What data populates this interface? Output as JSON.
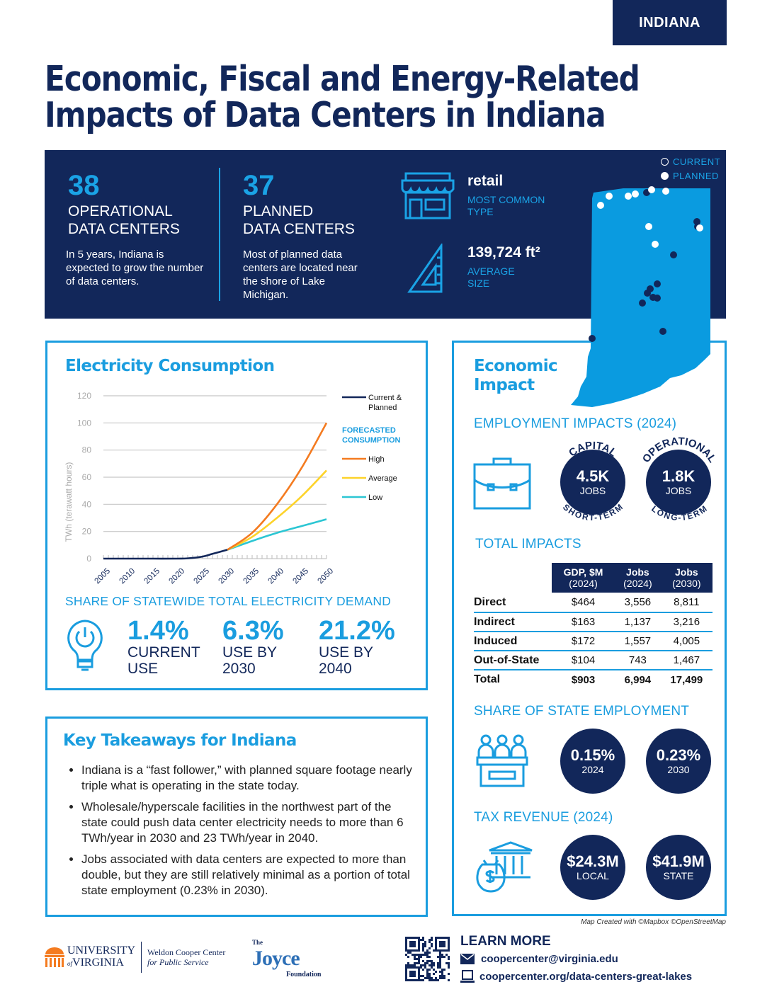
{
  "state_tab": "INDIANA",
  "title": [
    "Economic, Fiscal and Energy-Related",
    "Impacts of Data Centers in Indiana"
  ],
  "banner": {
    "operational": {
      "number": "38",
      "label": [
        "OPERATIONAL",
        "DATA CENTERS"
      ],
      "note": "In 5 years, Indiana is expected to grow the number of data centers."
    },
    "planned": {
      "number": "37",
      "label": [
        "PLANNED",
        "DATA CENTERS"
      ],
      "note": "Most of planned data centers are located near the shore of Lake Michigan."
    },
    "type": {
      "value": "retail",
      "label": [
        "MOST COMMON",
        "TYPE"
      ],
      "icon": "storefront-icon"
    },
    "size": {
      "value": "139,724 ft²",
      "label": [
        "AVERAGE",
        "SIZE"
      ],
      "icon": "ruler-triangle-icon"
    },
    "map_legend": {
      "current": "CURRENT",
      "planned": "PLANNED"
    }
  },
  "colors": {
    "navy": "#12275a",
    "accent": "#1a9ddf",
    "map": "#0a9be0",
    "high": "#f47b20",
    "average": "#fdd32a",
    "low": "#2cc6d3"
  },
  "electricity": {
    "title": "Electricity Consumption",
    "share_title": "SHARE OF STATEWIDE TOTAL ELECTRICITY DEMAND",
    "shares": [
      {
        "value": "1.4%",
        "label": [
          "CURRENT",
          "USE"
        ]
      },
      {
        "value": "6.3%",
        "label": [
          "USE BY",
          "2030"
        ]
      },
      {
        "value": "21.2%",
        "label": [
          "USE BY",
          "2040"
        ]
      }
    ]
  },
  "chart_data": {
    "type": "line",
    "ylabel": "TWh (terawatt hours)",
    "xlabel": "",
    "xlim": [
      2005,
      2050
    ],
    "ylim": [
      0,
      120
    ],
    "yticks": [
      0,
      20,
      40,
      60,
      80,
      100,
      120
    ],
    "xticks": [
      2005,
      2010,
      2015,
      2020,
      2025,
      2030,
      2035,
      2040,
      2045,
      2050
    ],
    "grid": true,
    "legend_placement": "right",
    "legend_heading": "FORECASTED CONSUMPTION",
    "series": [
      {
        "name": "Current & Planned",
        "color": "#12275a",
        "x": [
          2005,
          2010,
          2015,
          2020,
          2022,
          2025,
          2027,
          2030
        ],
        "y": [
          0,
          0,
          0,
          0,
          0.2,
          1.5,
          3.5,
          6.5
        ]
      },
      {
        "name": "High",
        "color": "#f47b20",
        "x": [
          2030,
          2035,
          2040,
          2045,
          2050
        ],
        "y": [
          6.5,
          19,
          40,
          67,
          100
        ]
      },
      {
        "name": "Average",
        "color": "#fdd32a",
        "x": [
          2030,
          2035,
          2040,
          2045,
          2050
        ],
        "y": [
          6.5,
          16,
          30,
          46,
          65
        ]
      },
      {
        "name": "Low",
        "color": "#2cc6d3",
        "x": [
          2030,
          2035,
          2040,
          2045,
          2050
        ],
        "y": [
          6.5,
          13,
          19,
          24,
          29
        ]
      }
    ]
  },
  "economic": {
    "title": [
      "Economic",
      "Impact"
    ],
    "employment_title": "EMPLOYMENT IMPACTS (2024)",
    "capital": {
      "arc_top": "CAPITAL",
      "value": "4.5K",
      "unit": "JOBS",
      "arc_bottom": "SHORT-TERM"
    },
    "operational": {
      "arc_top": "OPERATIONAL",
      "value": "1.8K",
      "unit": "JOBS",
      "arc_bottom": "LONG-TERM"
    },
    "total_title": "TOTAL IMPACTS",
    "table": {
      "headers": [
        [
          "GDP, $M",
          "(2024)"
        ],
        [
          "Jobs",
          "(2024)"
        ],
        [
          "Jobs",
          "(2030)"
        ]
      ],
      "rows": [
        [
          "Direct",
          "$464",
          "3,556",
          "8,811"
        ],
        [
          "Indirect",
          "$163",
          "1,137",
          "3,216"
        ],
        [
          "Induced",
          "$172",
          "1,557",
          "4,005"
        ],
        [
          "Out-of-State",
          "$104",
          "743",
          "1,467"
        ],
        [
          "Total",
          "$903",
          "6,994",
          "17,499"
        ]
      ]
    },
    "share_title": "SHARE OF STATE EMPLOYMENT",
    "share": [
      {
        "value": "0.15%",
        "label": "2024"
      },
      {
        "value": "0.23%",
        "label": "2030"
      }
    ],
    "tax_title": "TAX REVENUE (2024)",
    "tax": [
      {
        "value": "$24.3M",
        "label": "LOCAL"
      },
      {
        "value": "$41.9M",
        "label": "STATE"
      }
    ]
  },
  "takeaways": {
    "title": "Key Takeaways for Indiana",
    "items": [
      "Indiana is a “fast follower,” with planned square footage nearly triple what is operating in the state today.",
      "Wholesale/hyperscale facilities in the northwest part of the state could push data center electricity needs to more than 6 TWh/year in 2030 and 23 TWh/year in 2040.",
      "Jobs associated with data centers are expected to more than double, but they are still relatively minimal as a portion of total state employment (0.23% in 2030)."
    ]
  },
  "map_credit": "Map Created with ©Mapbox ©OpenStreetMap",
  "footer": {
    "uva": [
      "UNIVERSITY",
      "of",
      "VIRGINIA"
    ],
    "weldon": [
      "Weldon Cooper Center",
      "for Public Service"
    ],
    "joyce": [
      "The",
      "Joyce",
      "Foundation"
    ],
    "learn_more": "LEARN MORE",
    "email": "coopercenter@virginia.edu",
    "url": "coopercenter.org/data-centers-great-lakes"
  }
}
